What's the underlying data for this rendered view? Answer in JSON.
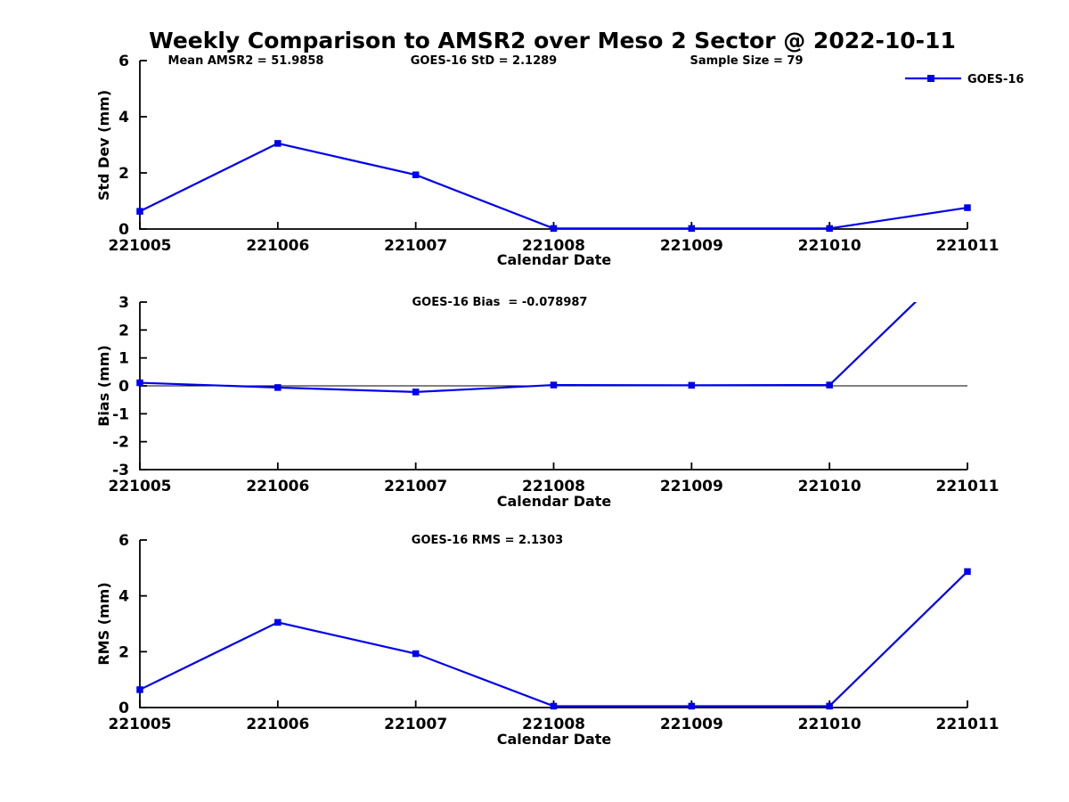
{
  "figure": {
    "title": "Weekly Comparison to AMSR2 over Meso 2 Sector @ 2022-10-11"
  },
  "legend": {
    "label": "GOES-16"
  },
  "chart_data": {
    "type": "line",
    "title": "Weekly Comparison to AMSR2 over Meso 2 Sector @ 2022-10-11",
    "series_name": "GOES-16",
    "line_color": "#0000ee",
    "xlabel": "Calendar Date",
    "x_categories": [
      "221005",
      "221006",
      "221007",
      "221008",
      "221009",
      "221010",
      "221011"
    ],
    "subplots": [
      {
        "ylabel": "Std Dev (mm)",
        "ylim": [
          0,
          6
        ],
        "yticks": [
          0,
          2,
          4,
          6
        ],
        "zero_line": false,
        "values": [
          0.63,
          3.05,
          1.93,
          0.02,
          0.02,
          0.02,
          0.76
        ],
        "annotations": [
          {
            "text": "Mean AMSR2 = 51.9858"
          },
          {
            "text": "GOES-16 StD = 2.1289"
          },
          {
            "text": "Sample Size = 79"
          }
        ]
      },
      {
        "ylabel": "Bias (mm)",
        "ylim": [
          -3,
          3
        ],
        "yticks": [
          -3,
          -2,
          -1,
          0,
          1,
          2,
          3
        ],
        "zero_line": true,
        "values": [
          0.11,
          -0.06,
          -0.22,
          0.03,
          0.02,
          0.03,
          4.8
        ],
        "annotations": [
          {
            "text": "GOES-16 Bias  = -0.078987"
          }
        ]
      },
      {
        "ylabel": "RMS (mm)",
        "ylim": [
          0,
          6
        ],
        "yticks": [
          0,
          2,
          4,
          6
        ],
        "zero_line": false,
        "values": [
          0.64,
          3.05,
          1.93,
          0.05,
          0.05,
          0.05,
          4.87
        ],
        "annotations": [
          {
            "text": "GOES-16 RMS = 2.1303"
          }
        ]
      }
    ]
  }
}
